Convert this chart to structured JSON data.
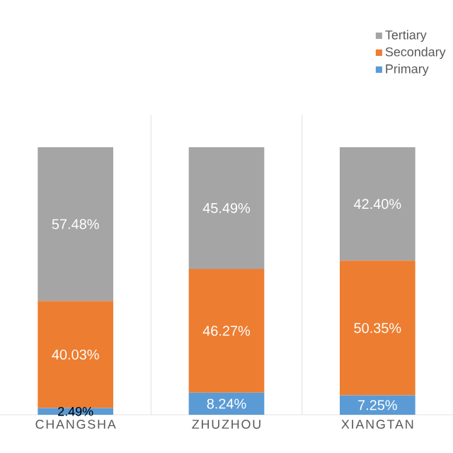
{
  "chart_data": {
    "type": "bar",
    "stacked": true,
    "categories": [
      "CHANGSHA",
      "ZHUZHOU",
      "XIANGTAN"
    ],
    "ylim": [
      0,
      100
    ],
    "tick_labels": "x",
    "legend": "top right",
    "series": [
      {
        "name": "Primary",
        "color": "#5b9bd5",
        "values": [
          2.49,
          8.24,
          7.25
        ],
        "value_labels": [
          "2.49%",
          "8.24%",
          "7.25%"
        ]
      },
      {
        "name": "Secondary",
        "color": "#ed7d31",
        "values": [
          40.03,
          46.27,
          50.35
        ],
        "value_labels": [
          "40.03%",
          "46.27%",
          "50.35%"
        ]
      },
      {
        "name": "Tertiary",
        "color": "#a5a5a5",
        "values": [
          57.48,
          45.49,
          42.4
        ],
        "value_labels": [
          "57.48%",
          "45.49%",
          "42.40%"
        ]
      }
    ]
  }
}
